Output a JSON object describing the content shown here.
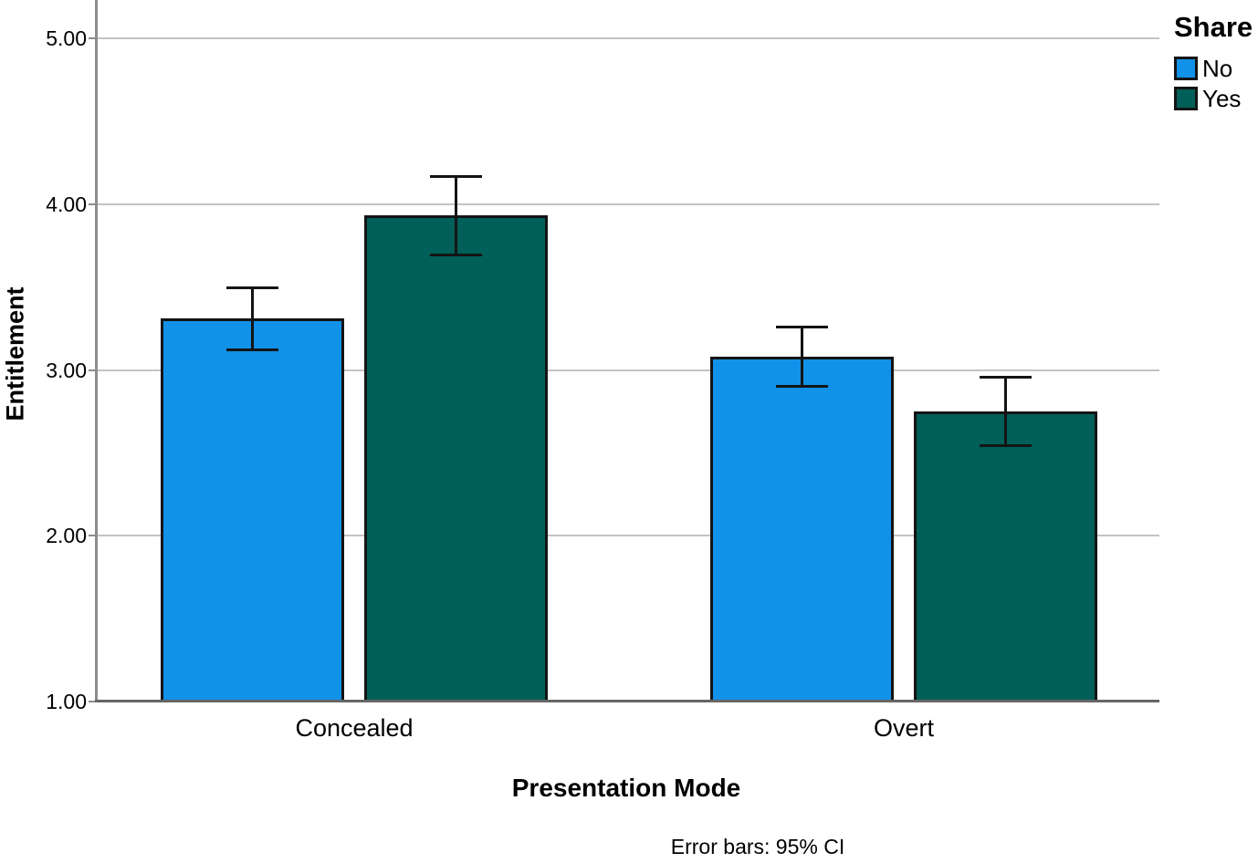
{
  "figure": {
    "y_axis_title": "Entitlement",
    "x_axis_title": "Presentation Mode",
    "footnote": "Error bars: 95% CI",
    "legend_title": "Share"
  },
  "chart_data": {
    "type": "bar",
    "title": "",
    "xlabel": "Presentation Mode",
    "ylabel": "Entitlement",
    "categories": [
      "Concealed",
      "Overt"
    ],
    "series": [
      {
        "name": "No",
        "color": "#1291e8",
        "values": [
          3.31,
          3.08
        ],
        "ci_low": [
          3.12,
          2.9
        ],
        "ci_high": [
          3.5,
          3.26
        ]
      },
      {
        "name": "Yes",
        "color": "#005f58",
        "values": [
          3.93,
          2.75
        ],
        "ci_low": [
          3.69,
          2.54
        ],
        "ci_high": [
          4.17,
          2.96
        ]
      }
    ],
    "y_tick_values": [
      1,
      2,
      3,
      4,
      5
    ],
    "y_tick_labels": [
      "1.00",
      "2.00",
      "3.00",
      "4.00",
      "5.00"
    ],
    "ylim": [
      1.0,
      5.23
    ],
    "error_bars": "95% CI",
    "grid": "horizontal",
    "legend_position": "top-right-outside",
    "colors": {
      "grid": "#c3c3c3",
      "axis": "#8c8c8c",
      "baseline": "#666666",
      "bar_border": "#141414",
      "error_bar": "#141414",
      "text": "#000000"
    }
  }
}
